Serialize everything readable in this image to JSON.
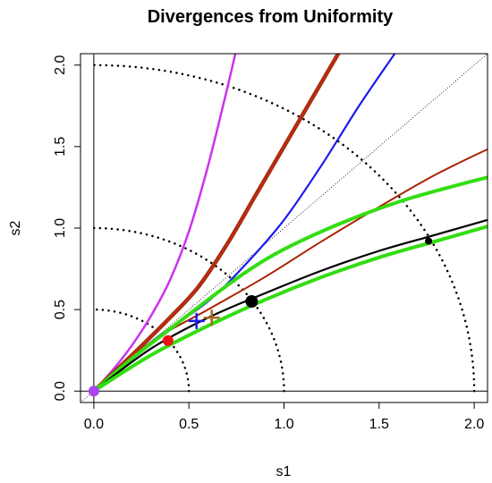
{
  "chart_data": {
    "type": "line",
    "title": "Divergences from Uniformity",
    "xlabel": "s1",
    "ylabel": "s2",
    "xlim": [
      -0.07,
      2.07
    ],
    "ylim": [
      -0.07,
      2.07
    ],
    "xticks": [
      0.0,
      0.5,
      1.0,
      1.5,
      2.0
    ],
    "yticks": [
      0.0,
      0.5,
      1.0,
      1.5,
      2.0
    ],
    "xtick_labels": [
      "0.0",
      "0.5",
      "1.0",
      "1.5",
      "2.0"
    ],
    "ytick_labels": [
      "0.0",
      "0.5",
      "1.0",
      "1.5",
      "2.0"
    ],
    "grid": false,
    "reference_lines": {
      "vertical_x": 0,
      "horizontal_y": 0,
      "identity_diagonal": true,
      "quarter_circles_radius": [
        0.5,
        1.0,
        2.0
      ]
    },
    "series": [
      {
        "color": "#cc33ee",
        "width": 2.5,
        "points": [
          [
            0,
            0
          ],
          [
            0.1,
            0.13
          ],
          [
            0.2,
            0.28
          ],
          [
            0.3,
            0.46
          ],
          [
            0.4,
            0.68
          ],
          [
            0.5,
            0.98
          ],
          [
            0.6,
            1.38
          ],
          [
            0.7,
            1.85
          ],
          [
            0.75,
            2.1
          ]
        ]
      },
      {
        "color": "#993300",
        "width": 4.5,
        "points": [
          [
            0,
            0
          ],
          [
            0.2,
            0.22
          ],
          [
            0.4,
            0.45
          ],
          [
            0.55,
            0.64
          ],
          [
            0.7,
            0.9
          ],
          [
            0.85,
            1.2
          ],
          [
            1.0,
            1.5
          ],
          [
            1.15,
            1.8
          ],
          [
            1.3,
            2.1
          ]
        ]
      },
      {
        "color": "#cc2222",
        "width": 1.8,
        "points": [
          [
            0,
            0
          ],
          [
            0.2,
            0.22
          ],
          [
            0.4,
            0.45
          ],
          [
            0.55,
            0.64
          ],
          [
            0.7,
            0.9
          ],
          [
            0.85,
            1.2
          ],
          [
            1.0,
            1.5
          ],
          [
            1.15,
            1.8
          ],
          [
            1.3,
            2.1
          ]
        ]
      },
      {
        "color": "#1a1aee",
        "width": 2.2,
        "points": [
          [
            0,
            0
          ],
          [
            0.3,
            0.3
          ],
          [
            0.6,
            0.55
          ],
          [
            0.8,
            0.78
          ],
          [
            1.0,
            1.05
          ],
          [
            1.2,
            1.39
          ],
          [
            1.4,
            1.76
          ],
          [
            1.6,
            2.1
          ]
        ]
      },
      {
        "color": "#aa2200",
        "width": 2.0,
        "points": [
          [
            0,
            0
          ],
          [
            0.3,
            0.3
          ],
          [
            0.6,
            0.5
          ],
          [
            0.9,
            0.7
          ],
          [
            1.2,
            0.92
          ],
          [
            1.5,
            1.13
          ],
          [
            1.8,
            1.33
          ],
          [
            2.1,
            1.5
          ]
        ]
      },
      {
        "color": "#33dd11",
        "width": 4.0,
        "points": [
          [
            0,
            0
          ],
          [
            0.2,
            0.2
          ],
          [
            0.4,
            0.38
          ],
          [
            0.6,
            0.56
          ],
          [
            0.8,
            0.73
          ],
          [
            1.0,
            0.87
          ],
          [
            1.3,
            1.03
          ],
          [
            1.6,
            1.16
          ],
          [
            1.9,
            1.26
          ],
          [
            2.1,
            1.32
          ]
        ]
      },
      {
        "color": "#000000",
        "width": 2.2,
        "points": [
          [
            0,
            0
          ],
          [
            0.3,
            0.26
          ],
          [
            0.6,
            0.45
          ],
          [
            0.9,
            0.6
          ],
          [
            1.2,
            0.74
          ],
          [
            1.5,
            0.86
          ],
          [
            1.8,
            0.96
          ],
          [
            2.1,
            1.06
          ]
        ]
      },
      {
        "color": "#33dd11",
        "width": 4.0,
        "points": [
          [
            0,
            0
          ],
          [
            0.3,
            0.22
          ],
          [
            0.6,
            0.4
          ],
          [
            0.9,
            0.56
          ],
          [
            1.2,
            0.7
          ],
          [
            1.5,
            0.82
          ],
          [
            1.8,
            0.92
          ],
          [
            2.1,
            1.02
          ]
        ]
      }
    ],
    "markers": [
      {
        "shape": "circle",
        "color": "#aa44ee",
        "size": 6,
        "x": 0.0,
        "y": 0.0
      },
      {
        "shape": "circle",
        "color": "#ee1111",
        "size": 6,
        "x": 0.39,
        "y": 0.31
      },
      {
        "shape": "plus",
        "color": "#1a1aee",
        "size": 9,
        "x": 0.54,
        "y": 0.43
      },
      {
        "shape": "plus",
        "color": "#aa6622",
        "size": 9,
        "x": 0.62,
        "y": 0.45
      },
      {
        "shape": "circle",
        "color": "#000000",
        "size": 7,
        "x": 0.83,
        "y": 0.55
      },
      {
        "shape": "circle",
        "color": "#000000",
        "size": 4,
        "x": 1.76,
        "y": 0.92
      }
    ]
  }
}
